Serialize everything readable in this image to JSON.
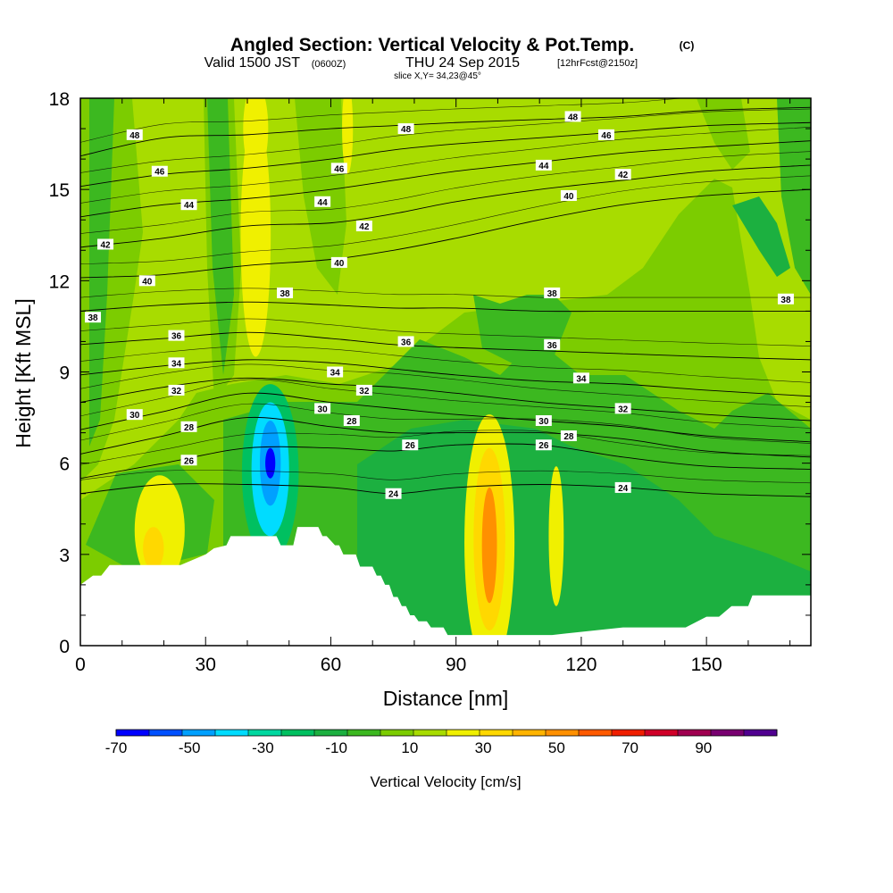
{
  "chart_data": {
    "type": "heatmap",
    "title": "Angled Section: Vertical Velocity & Pot.Temp.",
    "title_units": "(C)",
    "subtitle_main": "Valid 1500 JST",
    "subtitle_z": "(0600Z)",
    "subtitle_date": "THU 24 Sep 2015",
    "subtitle_fcst": "[12hrFcst@2150z]",
    "slice_label": "slice X,Y= 34,23@45°",
    "xlabel": "Distance [nm]",
    "ylabel": "Height [Kft MSL]",
    "xlim": [
      0,
      175
    ],
    "ylim": [
      0,
      18
    ],
    "x_ticks": [
      0,
      30,
      60,
      90,
      120,
      150
    ],
    "y_ticks": [
      0,
      3,
      6,
      9,
      12,
      15,
      18
    ],
    "grid": false,
    "colorbar": {
      "title": "Vertical Velocity [cm/s]",
      "bounds": [
        -80,
        -60,
        -40,
        -20,
        0,
        20,
        40,
        60,
        80,
        100
      ],
      "labels": [
        "-70",
        "-50",
        "-30",
        "-10",
        "10",
        "30",
        "50",
        "70",
        "90"
      ],
      "colors": [
        "#0000ff",
        "#0050ff",
        "#00a0ff",
        "#00dcff",
        "#00d8a0",
        "#00c060",
        "#1cb040",
        "#3cb820",
        "#7ccc00",
        "#a8dc00",
        "#f0f000",
        "#ffd800",
        "#ffb400",
        "#ff9000",
        "#ff5a00",
        "#f01e00",
        "#d00028",
        "#a00050",
        "#780070",
        "#500090"
      ]
    },
    "terrain": {
      "x": [
        0,
        3,
        5,
        7,
        24,
        30,
        32,
        35,
        36,
        37,
        47,
        48,
        51,
        52,
        57,
        58,
        59,
        61,
        62,
        63,
        66,
        67,
        70,
        71,
        72,
        73,
        74,
        75,
        76,
        77,
        78,
        79,
        80,
        81,
        83,
        84,
        87,
        88,
        89,
        91,
        92,
        93,
        113,
        130,
        143,
        145,
        150,
        152,
        153,
        156,
        160,
        161,
        165,
        175
      ],
      "height": [
        2.0,
        2.3,
        2.3,
        2.65,
        2.65,
        3.0,
        3.2,
        3.3,
        3.6,
        3.6,
        3.6,
        3.3,
        3.3,
        3.9,
        3.9,
        3.6,
        3.6,
        3.3,
        3.3,
        3.0,
        3.0,
        2.6,
        2.6,
        2.3,
        2.3,
        2.0,
        2.0,
        1.6,
        1.6,
        1.3,
        1.3,
        1.0,
        1.0,
        0.8,
        0.8,
        0.6,
        0.6,
        0.35,
        0.35,
        0.35,
        0.35,
        0.35,
        0.35,
        0.6,
        0.6,
        0.6,
        0.95,
        0.95,
        0.95,
        1.3,
        1.3,
        1.65,
        1.65,
        1.65
      ]
    },
    "series": [
      {
        "name": "-70",
        "type": "vv_cell",
        "cx": 45.5,
        "cy": 6.0,
        "rx": 1.2,
        "ry": 0.5
      },
      {
        "name": "-50",
        "type": "vv_cell",
        "cx": 45.5,
        "cy": 6.0,
        "rx": 2.5,
        "ry": 1.4
      },
      {
        "name": "-30",
        "type": "vv_cell",
        "cx": 45.5,
        "cy": 5.8,
        "rx": 4.5,
        "ry": 2.2
      },
      {
        "name": "-10",
        "type": "vv_cell",
        "cx": 45.5,
        "cy": 5.7,
        "rx": 6.8,
        "ry": 2.9
      },
      {
        "name": "30",
        "type": "vv_cell",
        "cx": 98.0,
        "cy": 3.5,
        "rx": 3.8,
        "ry": 3.0
      },
      {
        "name": "50",
        "type": "vv_cell",
        "cx": 98.0,
        "cy": 3.3,
        "rx": 1.8,
        "ry": 1.9
      },
      {
        "name": "10",
        "type": "vv_cell",
        "cx": 98.0,
        "cy": 3.4,
        "rx": 6.0,
        "ry": 4.2
      },
      {
        "name": "10",
        "type": "vv_cell",
        "cx": 114.0,
        "cy": 3.6,
        "rx": 1.8,
        "ry": 2.3
      },
      {
        "name": "10",
        "type": "vv_cell",
        "cx": 19.0,
        "cy": 3.8,
        "rx": 6.0,
        "ry": 1.8
      },
      {
        "name": "30",
        "type": "vv_cell",
        "cx": 17.5,
        "cy": 3.2,
        "rx": 2.5,
        "ry": 0.7
      },
      {
        "name": "10",
        "type": "vv_cell",
        "cx": 42.0,
        "cy": 13.5,
        "rx": 3.6,
        "ry": 4.0
      },
      {
        "name": "10",
        "type": "vv_cell",
        "cx": 42.0,
        "cy": 17.0,
        "rx": 3.0,
        "ry": 1.5
      },
      {
        "name": "10",
        "type": "vv_cell",
        "cx": 64.0,
        "cy": 17.0,
        "rx": 1.3,
        "ry": 1.5
      }
    ],
    "isentropes": [
      {
        "value": 24,
        "x": [
          0,
          20,
          40,
          60,
          75,
          90,
          110,
          130,
          150,
          175
        ],
        "y": [
          5.0,
          5.3,
          5.3,
          5.2,
          5.0,
          5.2,
          5.3,
          5.2,
          5.0,
          4.9
        ]
      },
      {
        "value": 26,
        "x": [
          0,
          20,
          40,
          60,
          75,
          90,
          110,
          130,
          150,
          175
        ],
        "y": [
          5.5,
          6.0,
          6.5,
          6.5,
          6.4,
          6.6,
          6.6,
          6.2,
          5.9,
          5.8
        ]
      },
      {
        "value": 28,
        "x": [
          0,
          20,
          40,
          60,
          75,
          90,
          110,
          130,
          150,
          175
        ],
        "y": [
          6.3,
          6.9,
          7.5,
          7.2,
          7.0,
          7.0,
          7.0,
          6.8,
          6.4,
          6.2
        ]
      },
      {
        "value": 30,
        "x": [
          0,
          20,
          40,
          60,
          75,
          90,
          110,
          130,
          150,
          175
        ],
        "y": [
          7.1,
          7.7,
          8.3,
          8.0,
          7.8,
          7.6,
          7.4,
          7.2,
          6.9,
          6.7
        ]
      },
      {
        "value": 32,
        "x": [
          0,
          20,
          40,
          60,
          75,
          90,
          110,
          130,
          150,
          175
        ],
        "y": [
          8.0,
          8.5,
          8.8,
          8.6,
          8.5,
          8.3,
          8.0,
          7.8,
          7.6,
          7.4
        ]
      },
      {
        "value": 34,
        "x": [
          0,
          20,
          40,
          60,
          75,
          90,
          110,
          130,
          150,
          175
        ],
        "y": [
          8.9,
          9.2,
          9.4,
          9.3,
          9.1,
          8.9,
          8.7,
          8.6,
          8.4,
          8.2
        ]
      },
      {
        "value": 36,
        "x": [
          0,
          20,
          40,
          60,
          75,
          90,
          110,
          130,
          150,
          175
        ],
        "y": [
          9.9,
          10.1,
          10.3,
          10.1,
          9.9,
          9.8,
          9.7,
          9.6,
          9.5,
          9.4
        ]
      },
      {
        "value": 38,
        "x": [
          0,
          20,
          40,
          60,
          75,
          90,
          110,
          130,
          150,
          175
        ],
        "y": [
          11.0,
          11.2,
          11.3,
          11.2,
          11.1,
          11.1,
          11.0,
          11.0,
          11.0,
          11.0
        ]
      },
      {
        "value": 40,
        "x": [
          0,
          20,
          40,
          60,
          75,
          90,
          110,
          130,
          150,
          175
        ],
        "y": [
          12.1,
          12.2,
          12.5,
          12.7,
          13.0,
          13.4,
          14.0,
          14.5,
          14.8,
          15.0
        ]
      },
      {
        "value": 42,
        "x": [
          0,
          20,
          40,
          60,
          75,
          90,
          110,
          130,
          150,
          175
        ],
        "y": [
          13.1,
          13.4,
          13.8,
          13.9,
          14.2,
          14.6,
          15.0,
          15.3,
          15.6,
          15.8
        ]
      },
      {
        "value": 44,
        "x": [
          0,
          20,
          40,
          60,
          75,
          90,
          110,
          130,
          150,
          175
        ],
        "y": [
          14.1,
          14.5,
          14.7,
          15.0,
          15.3,
          15.6,
          15.9,
          16.2,
          16.4,
          16.6
        ]
      },
      {
        "value": 46,
        "x": [
          0,
          20,
          40,
          60,
          75,
          90,
          110,
          130,
          150,
          175
        ],
        "y": [
          15.1,
          15.5,
          15.7,
          16.0,
          16.3,
          16.5,
          16.7,
          16.9,
          17.1,
          17.2
        ]
      },
      {
        "value": 48,
        "x": [
          0,
          20,
          40,
          60,
          75,
          90,
          110,
          130,
          150,
          175
        ],
        "y": [
          16.1,
          16.7,
          16.8,
          17.0,
          17.1,
          17.2,
          17.3,
          17.4,
          17.6,
          17.7
        ]
      }
    ],
    "isentrope_labels": [
      {
        "text": "48",
        "x": 13,
        "y": 16.8
      },
      {
        "text": "46",
        "x": 19,
        "y": 15.6
      },
      {
        "text": "44",
        "x": 26,
        "y": 14.5
      },
      {
        "text": "42",
        "x": 6,
        "y": 13.2
      },
      {
        "text": "40",
        "x": 16,
        "y": 12.0
      },
      {
        "text": "38",
        "x": 3,
        "y": 10.8
      },
      {
        "text": "36",
        "x": 23,
        "y": 10.2
      },
      {
        "text": "34",
        "x": 23,
        "y": 9.3
      },
      {
        "text": "32",
        "x": 23,
        "y": 8.4
      },
      {
        "text": "30",
        "x": 13,
        "y": 7.6
      },
      {
        "text": "28",
        "x": 26,
        "y": 7.2
      },
      {
        "text": "26",
        "x": 26,
        "y": 6.1
      },
      {
        "text": "48",
        "x": 78,
        "y": 17.0
      },
      {
        "text": "46",
        "x": 62,
        "y": 15.7
      },
      {
        "text": "44",
        "x": 58,
        "y": 14.6
      },
      {
        "text": "42",
        "x": 68,
        "y": 13.8
      },
      {
        "text": "40",
        "x": 62,
        "y": 12.6
      },
      {
        "text": "38",
        "x": 49,
        "y": 11.6
      },
      {
        "text": "36",
        "x": 78,
        "y": 10.0
      },
      {
        "text": "34",
        "x": 61,
        "y": 9.0
      },
      {
        "text": "32",
        "x": 68,
        "y": 8.4
      },
      {
        "text": "30",
        "x": 58,
        "y": 7.8
      },
      {
        "text": "28",
        "x": 65,
        "y": 7.4
      },
      {
        "text": "26",
        "x": 79,
        "y": 6.6
      },
      {
        "text": "24",
        "x": 75,
        "y": 5.0
      },
      {
        "text": "48",
        "x": 118,
        "y": 17.4
      },
      {
        "text": "46",
        "x": 126,
        "y": 16.8
      },
      {
        "text": "44",
        "x": 111,
        "y": 15.8
      },
      {
        "text": "42",
        "x": 130,
        "y": 15.5
      },
      {
        "text": "40",
        "x": 117,
        "y": 14.8
      },
      {
        "text": "38",
        "x": 113,
        "y": 11.6
      },
      {
        "text": "38",
        "x": 169,
        "y": 11.4
      },
      {
        "text": "36",
        "x": 113,
        "y": 9.9
      },
      {
        "text": "34",
        "x": 120,
        "y": 8.8
      },
      {
        "text": "32",
        "x": 130,
        "y": 7.8
      },
      {
        "text": "30",
        "x": 111,
        "y": 7.4
      },
      {
        "text": "28",
        "x": 117,
        "y": 6.9
      },
      {
        "text": "26",
        "x": 111,
        "y": 6.6
      },
      {
        "text": "24",
        "x": 130,
        "y": 5.2
      }
    ]
  }
}
